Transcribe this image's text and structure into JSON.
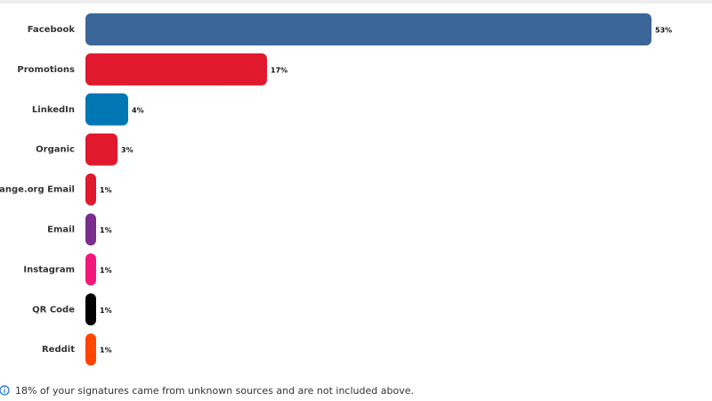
{
  "chart_data": {
    "type": "bar",
    "orientation": "horizontal",
    "categories": [
      "Facebook",
      "Promotions",
      "LinkedIn",
      "Organic",
      "Change.org Email",
      "Email",
      "Instagram",
      "QR Code",
      "Reddit"
    ],
    "values": [
      53,
      17,
      4,
      3,
      1,
      1,
      1,
      1,
      1
    ],
    "value_labels": [
      "53%",
      "17%",
      "4%",
      "3%",
      "1%",
      "1%",
      "1%",
      "1%",
      "1%"
    ],
    "colors": [
      "#3b6699",
      "#e0192d",
      "#0077b5",
      "#e0192d",
      "#e0192d",
      "#7b2d8e",
      "#f5187b",
      "#000000",
      "#ff4500"
    ],
    "footnote": "18% of your signatures came from unknown sources and are not included above."
  }
}
